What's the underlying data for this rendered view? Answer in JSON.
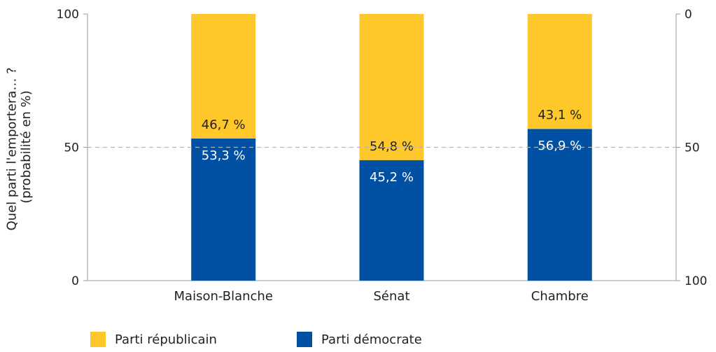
{
  "chart_data": {
    "type": "bar",
    "stacked": true,
    "categories": [
      "Maison-Blanche",
      "Sénat",
      "Chambre"
    ],
    "series": [
      {
        "name": "Parti démocrate",
        "color": "#0050a4",
        "label_color": "#ffffff",
        "values": [
          53.3,
          45.2,
          56.9
        ],
        "labels": [
          "53,3 %",
          "45,2 %",
          "56,9 %"
        ]
      },
      {
        "name": "Parti républicain",
        "color": "#fec72a",
        "label_color": "#222222",
        "values": [
          46.7,
          54.8,
          43.1
        ],
        "labels": [
          "46,7 %",
          "54,8 %",
          "43,1 %"
        ]
      }
    ],
    "ylabel_line1": "Quel parti l'emportera… ?",
    "ylabel_line2": "(probabilité en %)",
    "ylim": [
      0,
      100
    ],
    "left_ticks": [
      "0",
      "50",
      "100"
    ],
    "left_tick_values": [
      0,
      50,
      100
    ],
    "right_ticks": [
      "100",
      "50",
      "0"
    ],
    "right_tick_values": [
      0,
      50,
      100
    ],
    "reference_line": 50,
    "legend": [
      "Parti républicain",
      "Parti démocrate"
    ],
    "legend_placement": "bottom-left",
    "grid": false
  }
}
